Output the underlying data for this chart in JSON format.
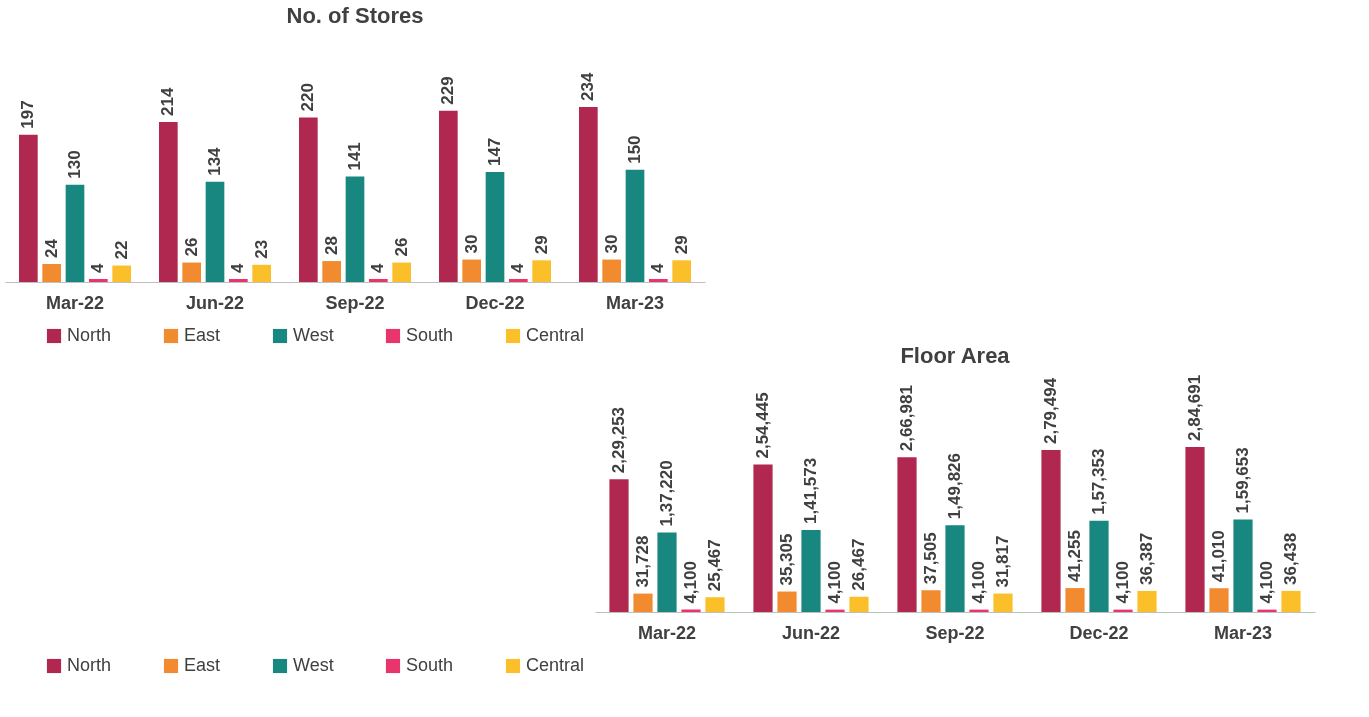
{
  "chart_data": [
    {
      "type": "bar",
      "title": "No. of Stores",
      "categories": [
        "Mar-22",
        "Jun-22",
        "Sep-22",
        "Dec-22",
        "Mar-23"
      ],
      "data_labels": true,
      "legend": "bottom",
      "grid": false,
      "series": [
        {
          "name": "North",
          "color": "#b0284f",
          "values": [
            197,
            214,
            220,
            229,
            234
          ]
        },
        {
          "name": "East",
          "color": "#f28a30",
          "values": [
            24,
            26,
            28,
            30,
            30
          ]
        },
        {
          "name": "West",
          "color": "#17877f",
          "values": [
            130,
            134,
            141,
            147,
            150
          ]
        },
        {
          "name": "South",
          "color": "#e8356b",
          "values": [
            4,
            4,
            4,
            4,
            4
          ]
        },
        {
          "name": "Central",
          "color": "#fbbf2a",
          "values": [
            22,
            23,
            26,
            29,
            29
          ]
        }
      ]
    },
    {
      "type": "bar",
      "title": "Floor Area",
      "categories": [
        "Mar-22",
        "Jun-22",
        "Sep-22",
        "Dec-22",
        "Mar-23"
      ],
      "legend": "bottom",
      "grid": false,
      "series": [
        {
          "name": "North",
          "color": "#b0284f",
          "values": [
            229253,
            254445,
            266981,
            279494,
            284691
          ],
          "value_labels": [
            "2,29,253",
            "2,54,445",
            "2,66,981",
            "2,79,494",
            "2,84,691"
          ]
        },
        {
          "name": "East",
          "color": "#f28a30",
          "values": [
            31728,
            35305,
            37505,
            41255,
            41010
          ],
          "value_labels": [
            "31,728",
            "35,305",
            "37,505",
            "41,255",
            "41,010"
          ]
        },
        {
          "name": "West",
          "color": "#17877f",
          "values": [
            137220,
            141573,
            149826,
            157353,
            159653
          ],
          "value_labels": [
            "1,37,220",
            "1,41,573",
            "1,49,826",
            "1,57,353",
            "1,59,653"
          ]
        },
        {
          "name": "South",
          "color": "#e8356b",
          "values": [
            4100,
            4100,
            4100,
            4100,
            4100
          ],
          "value_labels": [
            "4,100",
            "4,100",
            "4,100",
            "4,100",
            "4,100"
          ]
        },
        {
          "name": "Central",
          "color": "#fbbf2a",
          "values": [
            25467,
            26467,
            31817,
            36387,
            36438
          ],
          "value_labels": [
            "25,467",
            "26,467",
            "31,817",
            "36,387",
            "36,438"
          ]
        }
      ]
    }
  ]
}
